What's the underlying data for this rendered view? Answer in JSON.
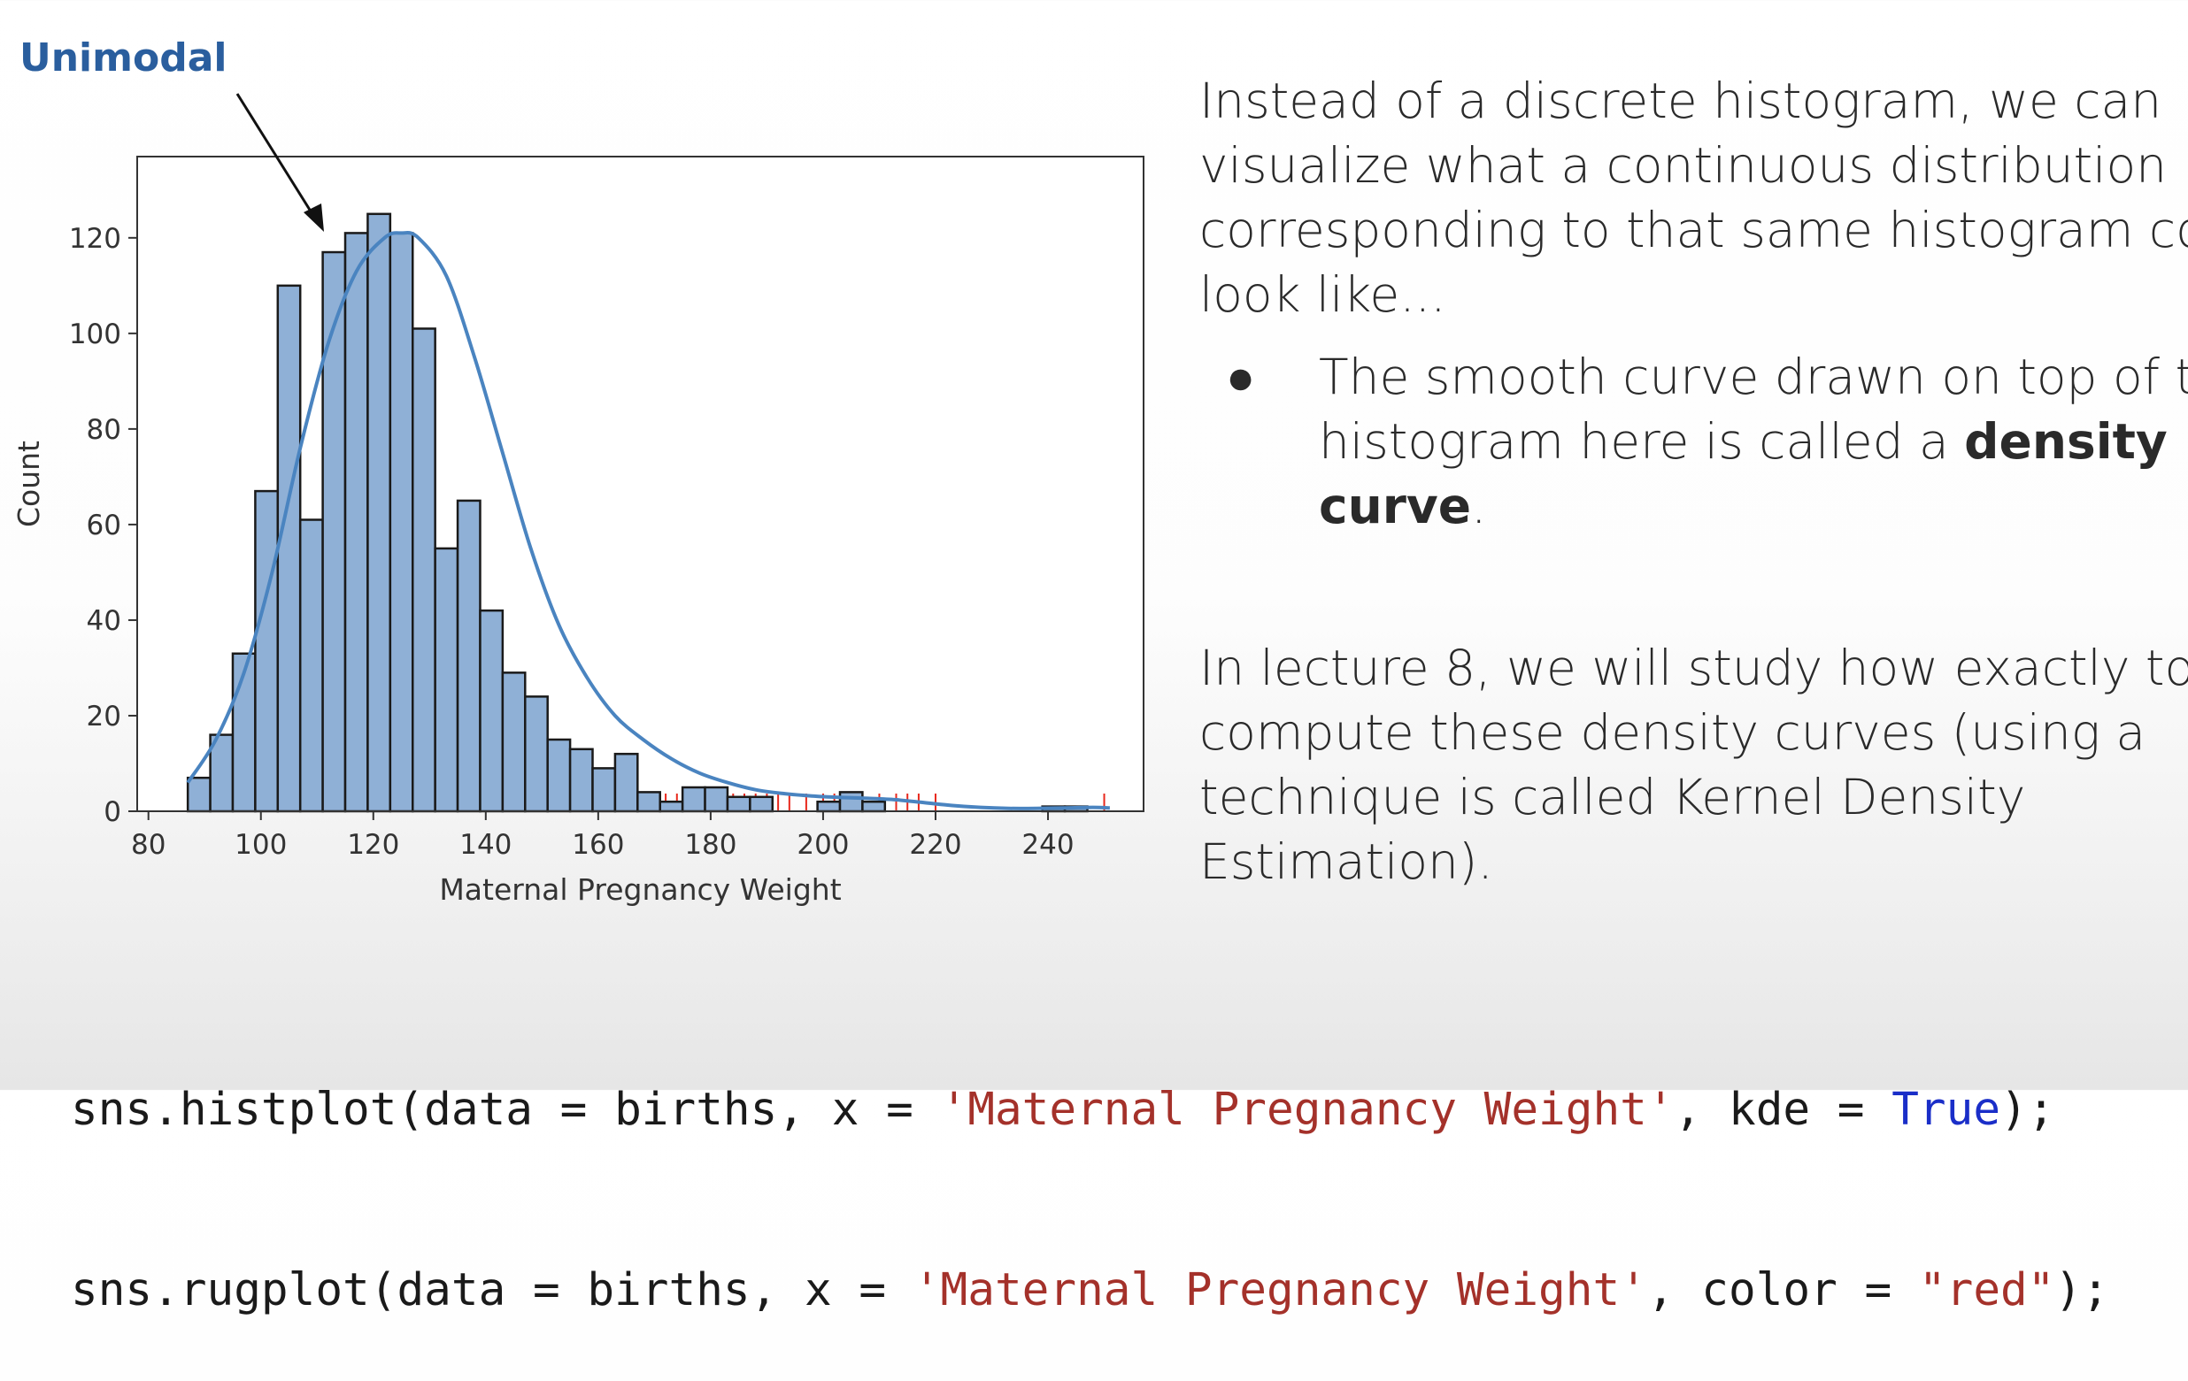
{
  "annotation": {
    "label": "Unimodal"
  },
  "side_text": {
    "para1_lines": [
      "Instead of a discrete histogram, we can",
      "visualize what a continuous distribution",
      "corresponding to that same histogram could",
      "look like..."
    ],
    "bullet": {
      "symbol": "●",
      "line1": "The smooth curve drawn on top of the",
      "line2_prefix": "histogram here is called a ",
      "term_part1": "density",
      "term_part2": "curve",
      "line3_suffix": "."
    },
    "para2_lines": [
      "In lecture 8, we will study how exactly to",
      "compute these density curves (using a",
      "technique is called Kernel Density",
      "Estimation)."
    ]
  },
  "code": {
    "line1": {
      "prefix": "sns.histplot(data = births, x = ",
      "string": "'Maternal Pregnancy Weight'",
      "middle": ", kde = ",
      "keyword": "True",
      "suffix": ");"
    },
    "line2": {
      "prefix": "sns.rugplot(data = births, x = ",
      "string": "'Maternal Pregnancy Weight'",
      "middle": ", color = ",
      "string2": "\"red\"",
      "suffix": ");"
    }
  },
  "chart_data": {
    "type": "bar",
    "xlabel": "Maternal Pregnancy Weight",
    "ylabel": "Count",
    "xlim": [
      78,
      257
    ],
    "ylim": [
      0,
      137
    ],
    "x_ticks": [
      80,
      100,
      120,
      140,
      160,
      180,
      200,
      220,
      240
    ],
    "y_ticks": [
      0,
      20,
      40,
      60,
      80,
      100,
      120
    ],
    "bin_edges": [
      87,
      91,
      95,
      99,
      103,
      107,
      111,
      115,
      119,
      123,
      127,
      131,
      135,
      139,
      143,
      147,
      151,
      155,
      159,
      163,
      167,
      171,
      175,
      179,
      183,
      187,
      191,
      195,
      199,
      203,
      207,
      211,
      215,
      219,
      223,
      227,
      231,
      235,
      239,
      243,
      247,
      251
    ],
    "counts": [
      7,
      16,
      33,
      67,
      110,
      61,
      117,
      121,
      125,
      121,
      101,
      55,
      65,
      42,
      29,
      24,
      15,
      13,
      9,
      12,
      4,
      2,
      5,
      5,
      3,
      3,
      0,
      0,
      2,
      4,
      2,
      0,
      0,
      0,
      0,
      0,
      0,
      0,
      1,
      1,
      0
    ],
    "kde": {
      "x": [
        87,
        92,
        97,
        102,
        107,
        112,
        117,
        122,
        125,
        128,
        133,
        138,
        143,
        148,
        153,
        158,
        163,
        168,
        173,
        178,
        183,
        188,
        193,
        198,
        203,
        208,
        213,
        218,
        223,
        228,
        233,
        238,
        243,
        248,
        251
      ],
      "y": [
        6,
        15,
        29,
        50,
        76,
        98,
        113,
        120,
        121,
        120,
        112,
        95,
        75,
        55,
        39,
        28,
        20,
        15,
        11,
        8,
        6,
        4.5,
        3.7,
        3.2,
        2.9,
        2.7,
        2.4,
        1.8,
        1.2,
        0.8,
        0.6,
        0.6,
        0.7,
        0.8,
        0.7
      ]
    },
    "rug_x": [
      88,
      90,
      92,
      94,
      95,
      97,
      99,
      100,
      101,
      102,
      103,
      104,
      105,
      106,
      107,
      108,
      109,
      110,
      111,
      112,
      113,
      114,
      115,
      116,
      117,
      118,
      119,
      120,
      121,
      122,
      123,
      124,
      125,
      126,
      127,
      128,
      129,
      130,
      131,
      132,
      133,
      134,
      135,
      136,
      137,
      138,
      139,
      140,
      141,
      142,
      143,
      144,
      145,
      146,
      147,
      148,
      149,
      150,
      151,
      152,
      153,
      154,
      155,
      156,
      157,
      158,
      160,
      161,
      162,
      164,
      165,
      167,
      169,
      171,
      172,
      174,
      176,
      178,
      180,
      182,
      184,
      186,
      188,
      190,
      192,
      194,
      197,
      200,
      202,
      210,
      213,
      215,
      217,
      220,
      250
    ],
    "colors": {
      "bar_fill": "#8fb0d6",
      "bar_edge": "#1a1a1a",
      "kde_line": "#4a84c0",
      "rug": "#e8281c",
      "annotation": "#2a5e9e"
    }
  }
}
